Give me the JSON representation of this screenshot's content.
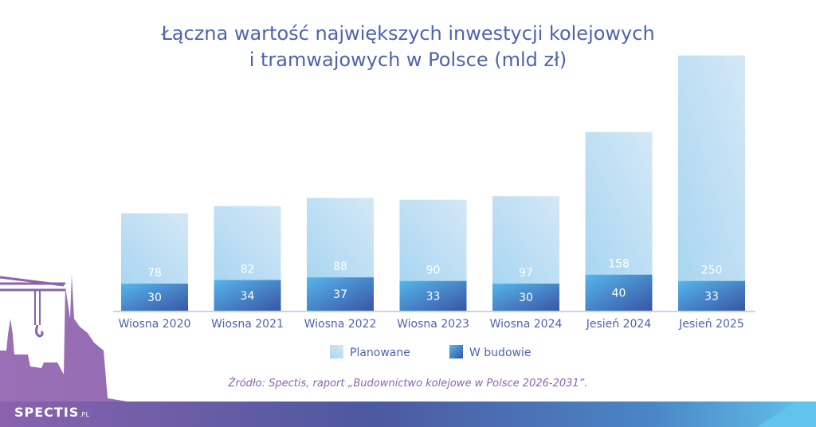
{
  "title_line1": "Łączna wartość największych inwestycji kolejowych",
  "title_line2": "i tramwajowych w Polsce (mld zł)",
  "source": "Źródło: Spectis, raport „Budownictwo kolejowe w Polsce 2026-2031”.",
  "logo": {
    "text": "SPECTIS",
    "suffix": ".PL"
  },
  "colors": {
    "planned": "#b8dcf2",
    "construction": "#3f7fcb",
    "text": "#4d63b0",
    "source": "#8a64b0",
    "skyline": "#8a62ad"
  },
  "chart_data": {
    "type": "bar",
    "stacked": true,
    "title": "Łączna wartość największych inwestycji kolejowych i tramwajowych w Polsce (mld zł)",
    "categories": [
      "Wiosna 2020",
      "Wiosna 2021",
      "Wiosna 2022",
      "Wiosna 2023",
      "Wiosna 2024",
      "Jesień 2024",
      "Jesień 2025"
    ],
    "series": [
      {
        "name": "W budowie",
        "values": [
          30,
          34,
          37,
          33,
          30,
          40,
          33
        ]
      },
      {
        "name": "Planowane",
        "values": [
          78,
          82,
          88,
          90,
          97,
          158,
          250
        ]
      }
    ],
    "legend": [
      "Planowane",
      "W budowie"
    ],
    "legend_placement": "bottom",
    "grid": false,
    "ylim": [
      0,
      290
    ]
  }
}
